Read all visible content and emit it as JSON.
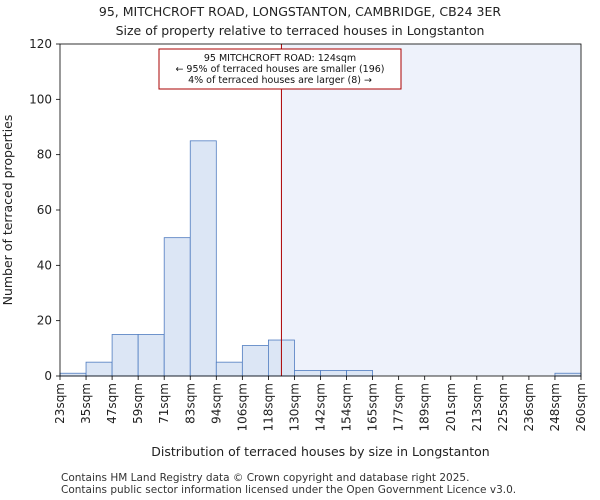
{
  "header": {
    "title": "95, MITCHCROFT ROAD, LONGSTANTON, CAMBRIDGE, CB24 3ER",
    "subtitle": "Size of property relative to terraced houses in Longstanton"
  },
  "footer": {
    "line1": "Contains HM Land Registry data © Crown copyright and database right 2025.",
    "line2": "Contains public sector information licensed under the Open Government Licence v3.0."
  },
  "colors": {
    "bar_fill": "#dce6f5",
    "bar_stroke": "#4f7cc0",
    "highlight_fill": "#eef2fb",
    "marker_line": "#aa0000",
    "annotation_border": "#aa0000"
  },
  "chart_data": {
    "type": "bar",
    "xlabel": "Distribution of terraced houses by size in Longstanton",
    "ylabel": "Number of terraced properties",
    "ylim": [
      0,
      120
    ],
    "yticks": [
      0,
      20,
      40,
      60,
      80,
      100,
      120
    ],
    "bin_edges": [
      23,
      35,
      47,
      59,
      71,
      83,
      94,
      106,
      118,
      130,
      142,
      154,
      165,
      177,
      189,
      201,
      213,
      225,
      236,
      248,
      260
    ],
    "tick_labels": [
      "23sqm",
      "35sqm",
      "47sqm",
      "59sqm",
      "71sqm",
      "83sqm",
      "94sqm",
      "106sqm",
      "118sqm",
      "130sqm",
      "142sqm",
      "154sqm",
      "165sqm",
      "177sqm",
      "189sqm",
      "201sqm",
      "213sqm",
      "225sqm",
      "236sqm",
      "248sqm",
      "260sqm"
    ],
    "values": [
      1,
      5,
      15,
      15,
      50,
      85,
      5,
      11,
      13,
      2,
      2,
      2,
      0,
      0,
      0,
      0,
      0,
      0,
      0,
      1
    ],
    "marker_value": 124,
    "annotation": {
      "line1": "95 MITCHCROFT ROAD: 124sqm",
      "line2": "← 95% of terraced houses are smaller (196)",
      "line3": "4% of terraced houses are larger (8) →"
    }
  }
}
